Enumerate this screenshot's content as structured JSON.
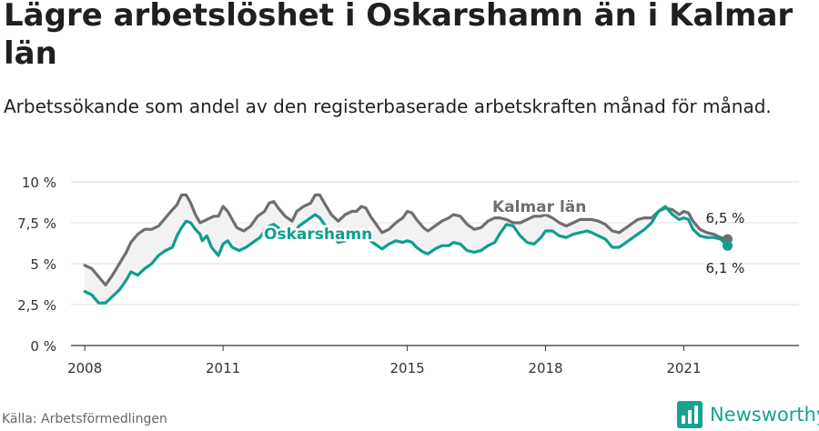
{
  "title": "Lägre arbetslöshet i Oskarshamn än i Kalmar län",
  "subtitle": "Arbetssökande som andel av den registerbaserade arbetskraften månad för månad.",
  "source": "Källa: Arbetsförmedlingen",
  "brand": "Newsworthy",
  "colors": {
    "kalmar": "#6e6e73",
    "oskarshamn": "#0f9e8e",
    "band": "#f2f2f2",
    "axis": "#333333",
    "grid": "#dddddd"
  },
  "chart_data": {
    "type": "line",
    "x_unit": "year (decimal)",
    "xlim": [
      2007.7,
      2023.5
    ],
    "ylim": [
      0,
      10
    ],
    "x_ticks": [
      {
        "value": 2008,
        "label": "2008"
      },
      {
        "value": 2011,
        "label": "2011"
      },
      {
        "value": 2015,
        "label": "2015"
      },
      {
        "value": 2018,
        "label": "2018"
      },
      {
        "value": 2021,
        "label": "2021"
      }
    ],
    "y_ticks": [
      {
        "value": 0,
        "label": "0 %"
      },
      {
        "value": 2.5,
        "label": "2,5 %"
      },
      {
        "value": 5,
        "label": "5 %"
      },
      {
        "value": 7.5,
        "label": "7,5 %"
      },
      {
        "value": 10,
        "label": "10 %"
      }
    ],
    "grid": "horizontal",
    "series": [
      {
        "name": "Kalmar län",
        "color": "#6e6e73",
        "end_label": "6,5 %",
        "points": [
          [
            2008.0,
            4.9
          ],
          [
            2008.15,
            4.7
          ],
          [
            2008.3,
            4.2
          ],
          [
            2008.45,
            3.7
          ],
          [
            2008.6,
            4.3
          ],
          [
            2008.75,
            5.0
          ],
          [
            2008.9,
            5.7
          ],
          [
            2009.0,
            6.3
          ],
          [
            2009.15,
            6.8
          ],
          [
            2009.3,
            7.1
          ],
          [
            2009.45,
            7.1
          ],
          [
            2009.6,
            7.3
          ],
          [
            2009.75,
            7.8
          ],
          [
            2009.9,
            8.3
          ],
          [
            2010.0,
            8.6
          ],
          [
            2010.1,
            9.2
          ],
          [
            2010.2,
            9.2
          ],
          [
            2010.3,
            8.7
          ],
          [
            2010.4,
            8.0
          ],
          [
            2010.5,
            7.5
          ],
          [
            2010.65,
            7.7
          ],
          [
            2010.8,
            7.9
          ],
          [
            2010.9,
            7.9
          ],
          [
            2011.0,
            8.5
          ],
          [
            2011.1,
            8.2
          ],
          [
            2011.2,
            7.7
          ],
          [
            2011.3,
            7.2
          ],
          [
            2011.45,
            7.0
          ],
          [
            2011.6,
            7.3
          ],
          [
            2011.75,
            7.9
          ],
          [
            2011.9,
            8.2
          ],
          [
            2012.0,
            8.7
          ],
          [
            2012.1,
            8.8
          ],
          [
            2012.2,
            8.4
          ],
          [
            2012.35,
            7.9
          ],
          [
            2012.5,
            7.6
          ],
          [
            2012.6,
            8.2
          ],
          [
            2012.75,
            8.5
          ],
          [
            2012.9,
            8.7
          ],
          [
            2013.0,
            9.2
          ],
          [
            2013.1,
            9.2
          ],
          [
            2013.2,
            8.7
          ],
          [
            2013.35,
            8.0
          ],
          [
            2013.5,
            7.6
          ],
          [
            2013.65,
            8.0
          ],
          [
            2013.8,
            8.2
          ],
          [
            2013.9,
            8.2
          ],
          [
            2014.0,
            8.5
          ],
          [
            2014.1,
            8.4
          ],
          [
            2014.2,
            7.9
          ],
          [
            2014.35,
            7.3
          ],
          [
            2014.45,
            6.9
          ],
          [
            2014.6,
            7.1
          ],
          [
            2014.75,
            7.5
          ],
          [
            2014.9,
            7.8
          ],
          [
            2015.0,
            8.2
          ],
          [
            2015.1,
            8.1
          ],
          [
            2015.2,
            7.7
          ],
          [
            2015.35,
            7.2
          ],
          [
            2015.45,
            7.0
          ],
          [
            2015.6,
            7.3
          ],
          [
            2015.75,
            7.6
          ],
          [
            2015.9,
            7.8
          ],
          [
            2016.0,
            8.0
          ],
          [
            2016.15,
            7.9
          ],
          [
            2016.3,
            7.4
          ],
          [
            2016.45,
            7.1
          ],
          [
            2016.6,
            7.2
          ],
          [
            2016.75,
            7.6
          ],
          [
            2016.9,
            7.8
          ],
          [
            2017.0,
            7.8
          ],
          [
            2017.15,
            7.7
          ],
          [
            2017.3,
            7.5
          ],
          [
            2017.45,
            7.5
          ],
          [
            2017.6,
            7.7
          ],
          [
            2017.75,
            7.9
          ],
          [
            2017.9,
            7.9
          ],
          [
            2018.0,
            8.0
          ],
          [
            2018.15,
            7.8
          ],
          [
            2018.3,
            7.5
          ],
          [
            2018.45,
            7.3
          ],
          [
            2018.6,
            7.5
          ],
          [
            2018.75,
            7.7
          ],
          [
            2018.9,
            7.7
          ],
          [
            2019.0,
            7.7
          ],
          [
            2019.15,
            7.6
          ],
          [
            2019.3,
            7.4
          ],
          [
            2019.45,
            7.0
          ],
          [
            2019.6,
            6.9
          ],
          [
            2019.75,
            7.2
          ],
          [
            2019.9,
            7.5
          ],
          [
            2020.0,
            7.7
          ],
          [
            2020.15,
            7.8
          ],
          [
            2020.3,
            7.8
          ],
          [
            2020.45,
            8.2
          ],
          [
            2020.6,
            8.4
          ],
          [
            2020.75,
            8.3
          ],
          [
            2020.9,
            8.0
          ],
          [
            2021.0,
            8.2
          ],
          [
            2021.1,
            8.1
          ],
          [
            2021.2,
            7.6
          ],
          [
            2021.35,
            7.1
          ],
          [
            2021.5,
            6.9
          ],
          [
            2021.65,
            6.8
          ],
          [
            2021.8,
            6.6
          ],
          [
            2021.95,
            6.5
          ]
        ]
      },
      {
        "name": "Oskarshamn",
        "color": "#0f9e8e",
        "end_label": "6,1 %",
        "points": [
          [
            2008.0,
            3.3
          ],
          [
            2008.15,
            3.1
          ],
          [
            2008.3,
            2.6
          ],
          [
            2008.45,
            2.6
          ],
          [
            2008.6,
            3.0
          ],
          [
            2008.75,
            3.4
          ],
          [
            2008.9,
            4.0
          ],
          [
            2009.0,
            4.5
          ],
          [
            2009.15,
            4.3
          ],
          [
            2009.3,
            4.7
          ],
          [
            2009.45,
            5.0
          ],
          [
            2009.6,
            5.5
          ],
          [
            2009.75,
            5.8
          ],
          [
            2009.9,
            6.0
          ],
          [
            2010.0,
            6.7
          ],
          [
            2010.1,
            7.2
          ],
          [
            2010.2,
            7.6
          ],
          [
            2010.3,
            7.5
          ],
          [
            2010.4,
            7.1
          ],
          [
            2010.5,
            6.8
          ],
          [
            2010.55,
            6.4
          ],
          [
            2010.65,
            6.7
          ],
          [
            2010.75,
            6.0
          ],
          [
            2010.9,
            5.5
          ],
          [
            2011.0,
            6.2
          ],
          [
            2011.1,
            6.4
          ],
          [
            2011.2,
            6.0
          ],
          [
            2011.35,
            5.8
          ],
          [
            2011.5,
            6.0
          ],
          [
            2011.65,
            6.3
          ],
          [
            2011.8,
            6.6
          ],
          [
            2011.9,
            7.0
          ],
          [
            2012.0,
            7.3
          ],
          [
            2012.1,
            7.4
          ],
          [
            2012.2,
            7.2
          ],
          [
            2012.35,
            6.7
          ],
          [
            2012.5,
            6.6
          ],
          [
            2012.65,
            7.3
          ],
          [
            2012.8,
            7.6
          ],
          [
            2012.9,
            7.8
          ],
          [
            2013.0,
            8.0
          ],
          [
            2013.1,
            7.8
          ],
          [
            2013.2,
            7.4
          ],
          [
            2013.35,
            6.8
          ],
          [
            2013.5,
            6.3
          ],
          [
            2013.65,
            6.4
          ],
          [
            2013.8,
            6.7
          ],
          [
            2013.9,
            6.7
          ],
          [
            2014.0,
            6.9
          ],
          [
            2014.1,
            6.7
          ],
          [
            2014.2,
            6.4
          ],
          [
            2014.35,
            6.1
          ],
          [
            2014.45,
            5.9
          ],
          [
            2014.6,
            6.2
          ],
          [
            2014.75,
            6.4
          ],
          [
            2014.9,
            6.3
          ],
          [
            2015.0,
            6.4
          ],
          [
            2015.1,
            6.3
          ],
          [
            2015.2,
            6.0
          ],
          [
            2015.35,
            5.7
          ],
          [
            2015.45,
            5.6
          ],
          [
            2015.6,
            5.9
          ],
          [
            2015.75,
            6.1
          ],
          [
            2015.9,
            6.1
          ],
          [
            2016.0,
            6.3
          ],
          [
            2016.15,
            6.2
          ],
          [
            2016.3,
            5.8
          ],
          [
            2016.45,
            5.7
          ],
          [
            2016.6,
            5.8
          ],
          [
            2016.75,
            6.1
          ],
          [
            2016.9,
            6.3
          ],
          [
            2017.0,
            6.8
          ],
          [
            2017.15,
            7.4
          ],
          [
            2017.3,
            7.3
          ],
          [
            2017.45,
            6.7
          ],
          [
            2017.6,
            6.3
          ],
          [
            2017.75,
            6.2
          ],
          [
            2017.9,
            6.6
          ],
          [
            2018.0,
            7.0
          ],
          [
            2018.15,
            7.0
          ],
          [
            2018.3,
            6.7
          ],
          [
            2018.45,
            6.6
          ],
          [
            2018.6,
            6.8
          ],
          [
            2018.75,
            6.9
          ],
          [
            2018.9,
            7.0
          ],
          [
            2019.0,
            6.9
          ],
          [
            2019.15,
            6.7
          ],
          [
            2019.3,
            6.5
          ],
          [
            2019.45,
            6.0
          ],
          [
            2019.6,
            6.0
          ],
          [
            2019.75,
            6.3
          ],
          [
            2019.9,
            6.6
          ],
          [
            2020.0,
            6.8
          ],
          [
            2020.15,
            7.1
          ],
          [
            2020.3,
            7.5
          ],
          [
            2020.45,
            8.2
          ],
          [
            2020.6,
            8.5
          ],
          [
            2020.75,
            8.0
          ],
          [
            2020.9,
            7.7
          ],
          [
            2021.0,
            7.8
          ],
          [
            2021.1,
            7.7
          ],
          [
            2021.2,
            7.1
          ],
          [
            2021.35,
            6.7
          ],
          [
            2021.5,
            6.6
          ],
          [
            2021.65,
            6.6
          ],
          [
            2021.8,
            6.5
          ],
          [
            2021.95,
            6.1
          ]
        ]
      }
    ]
  }
}
